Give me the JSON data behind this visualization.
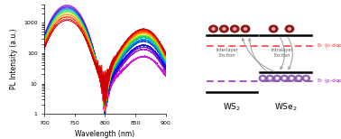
{
  "fig_width": 3.78,
  "fig_height": 1.54,
  "dpi": 100,
  "left_panel": {
    "xlabel": "Wavelength (nm)",
    "ylabel": "PL Intensity (a.u.)",
    "xmin": 700,
    "xmax": 900,
    "ymin": 1,
    "ymax": 4000,
    "colors": [
      "#CC00CC",
      "#9900CC",
      "#6600CC",
      "#3300CC",
      "#0000FF",
      "#0033EE",
      "#0066DD",
      "#0099CC",
      "#00BBBB",
      "#00CC88",
      "#00DD44",
      "#66EE00",
      "#AADD00",
      "#DDCC00",
      "#FFAA00",
      "#FF8800",
      "#FF5500",
      "#FF2200",
      "#EE0000",
      "#CC0000"
    ]
  },
  "right_panel": {
    "ef_n_label": "E$_F$ (n-doping)",
    "ef_p_label": "E$_F$ (p-doping)",
    "ef_n_color": "#FF3333",
    "ef_p_color": "#9922BB",
    "interlayer_label": "Interlayer\nExciton",
    "intralayer_label": "Intralayer\nExciton",
    "ws2_label": "WS$_2$",
    "wse2_label": "WSe$_2$",
    "electron_color": "#8B1A1A",
    "hole_color": "#8855AA"
  }
}
